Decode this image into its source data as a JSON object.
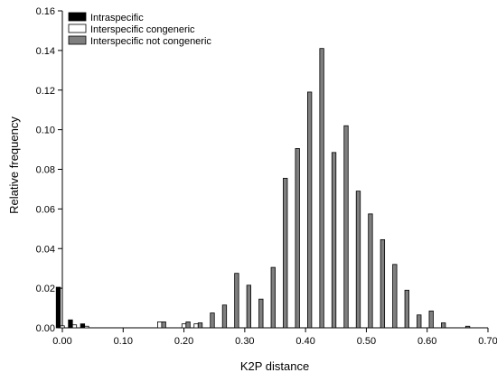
{
  "chart_data": {
    "type": "bar",
    "xlabel": "K2P distance",
    "ylabel": "Relative frequency",
    "xlim": [
      0,
      0.7
    ],
    "ylim": [
      0,
      0.16
    ],
    "x_ticks": [
      "0.00",
      "0.10",
      "0.20",
      "0.30",
      "0.40",
      "0.50",
      "0.60",
      "0.70"
    ],
    "y_ticks": [
      "0.00",
      "0.02",
      "0.04",
      "0.06",
      "0.08",
      "0.10",
      "0.12",
      "0.14",
      "0.16"
    ],
    "grid": false,
    "legend_position": "top-left",
    "series": [
      {
        "name": "Intraspecific",
        "color": "#000000",
        "points": [
          {
            "x": 0.0,
            "y": 0.0205
          },
          {
            "x": 0.02,
            "y": 0.004
          },
          {
            "x": 0.04,
            "y": 0.002
          }
        ]
      },
      {
        "name": "Interspecific congeneric",
        "color": "#ffffff",
        "points": [
          {
            "x": 0.0,
            "y": 0.001
          },
          {
            "x": 0.02,
            "y": 0.0015
          },
          {
            "x": 0.04,
            "y": 0.0008
          },
          {
            "x": 0.16,
            "y": 0.003
          },
          {
            "x": 0.2,
            "y": 0.002
          },
          {
            "x": 0.22,
            "y": 0.002
          }
        ]
      },
      {
        "name": "Interspecific not congeneric",
        "color": "#7f7f7f",
        "points": [
          {
            "x": 0.16,
            "y": 0.003
          },
          {
            "x": 0.2,
            "y": 0.003
          },
          {
            "x": 0.22,
            "y": 0.0025
          },
          {
            "x": 0.24,
            "y": 0.0075
          },
          {
            "x": 0.26,
            "y": 0.0115
          },
          {
            "x": 0.28,
            "y": 0.0275
          },
          {
            "x": 0.3,
            "y": 0.0215
          },
          {
            "x": 0.32,
            "y": 0.0145
          },
          {
            "x": 0.34,
            "y": 0.0305
          },
          {
            "x": 0.36,
            "y": 0.0755
          },
          {
            "x": 0.38,
            "y": 0.0905
          },
          {
            "x": 0.4,
            "y": 0.119
          },
          {
            "x": 0.42,
            "y": 0.141
          },
          {
            "x": 0.44,
            "y": 0.0885
          },
          {
            "x": 0.46,
            "y": 0.102
          },
          {
            "x": 0.48,
            "y": 0.069
          },
          {
            "x": 0.5,
            "y": 0.0575
          },
          {
            "x": 0.52,
            "y": 0.0445
          },
          {
            "x": 0.54,
            "y": 0.032
          },
          {
            "x": 0.56,
            "y": 0.019
          },
          {
            "x": 0.58,
            "y": 0.0065
          },
          {
            "x": 0.6,
            "y": 0.0085
          },
          {
            "x": 0.62,
            "y": 0.0025
          },
          {
            "x": 0.66,
            "y": 0.0008
          }
        ]
      }
    ]
  }
}
